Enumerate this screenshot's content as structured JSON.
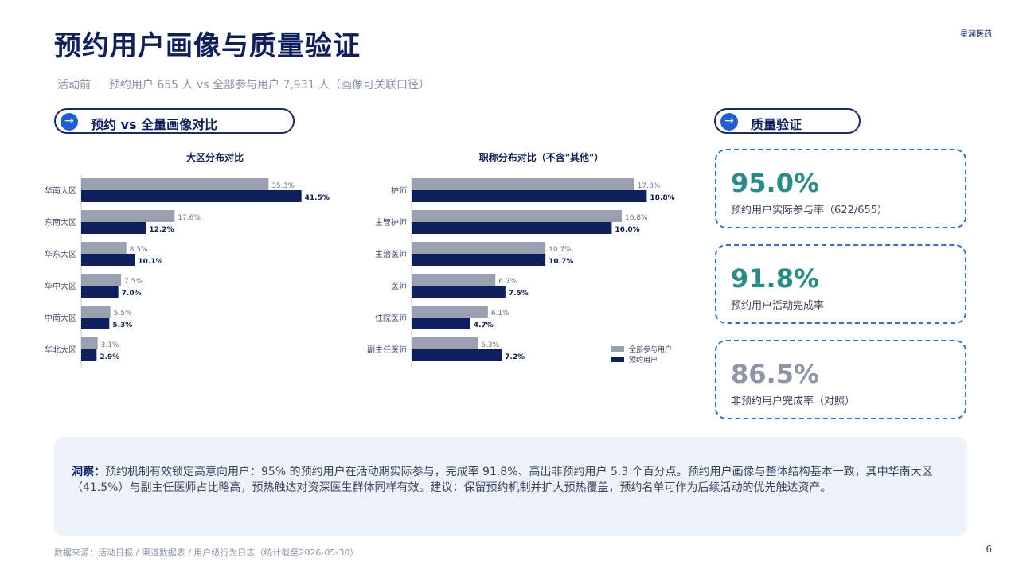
{
  "header": {
    "title": "预约用户画像与质量验证",
    "brand": "星澜医药",
    "subtitle": "活动前 ｜ 预约用户 655 人 vs 全部参与用户 7,931 人（画像可关联口径）"
  },
  "left_section": {
    "arrow": "→",
    "title": "预约 vs 全量画像对比"
  },
  "right_section": {
    "arrow": "→",
    "title": "质量验证"
  },
  "colors": {
    "all_users": "#9aa0b0",
    "reserved_users": "#0d1f5c",
    "accent_green": "#2a8c86",
    "muted_gray": "#8e95a6",
    "card_border": "#2f6fd6"
  },
  "chart_data": [
    {
      "type": "bar",
      "orientation": "horizontal",
      "title": "大区分布对比",
      "categories": [
        "华南大区",
        "东南大区",
        "华东大区",
        "华中大区",
        "中南大区",
        "华北大区"
      ],
      "series": [
        {
          "name": "全部参与用户",
          "values": [
            35.3,
            17.6,
            8.5,
            7.5,
            5.5,
            3.1
          ]
        },
        {
          "name": "预约用户",
          "values": [
            41.5,
            12.2,
            10.1,
            7.0,
            5.3,
            2.9
          ]
        }
      ],
      "unit": "%",
      "xlim": [
        0,
        48
      ],
      "grid": false
    },
    {
      "type": "bar",
      "orientation": "horizontal",
      "title": "职称分布对比（不含\"其他\"）",
      "categories": [
        "护师",
        "主管护师",
        "主治医师",
        "医师",
        "住院医师",
        "副主任医师"
      ],
      "series": [
        {
          "name": "全部参与用户",
          "values": [
            17.8,
            16.8,
            10.7,
            6.7,
            6.1,
            5.3
          ]
        },
        {
          "name": "预约用户",
          "values": [
            18.8,
            16.0,
            10.7,
            7.5,
            4.7,
            7.2
          ]
        }
      ],
      "unit": "%",
      "xlim": [
        0,
        21
      ],
      "grid": false,
      "legend": "bottom-right"
    }
  ],
  "cards": [
    {
      "value": "95.0%",
      "label": "预约用户实际参与率（622/655）",
      "color": "#2a8c86"
    },
    {
      "value": "91.8%",
      "label": "预约用户活动完成率",
      "color": "#2a8c86"
    },
    {
      "value": "86.5%",
      "label": "非预约用户完成率（对照）",
      "color": "#8e95a6"
    }
  ],
  "insight": {
    "label": "洞察：",
    "text": "预约机制有效锁定高意向用户：95% 的预约用户在活动期实际参与，完成率 91.8%、高出非预约用户 5.3 个百分点。预约用户画像与整体结构基本一致，其中华南大区（41.5%）与副主任医师占比略高，预热触达对资深医生群体同样有效。建议：保留预约机制并扩大预热覆盖，预约名单可作为后续活动的优先触达资产。"
  },
  "footer": {
    "source": "数据来源：活动日报 / 渠道数据表 / 用户级行为日志（统计截至2026-05-30）",
    "page": "6"
  }
}
